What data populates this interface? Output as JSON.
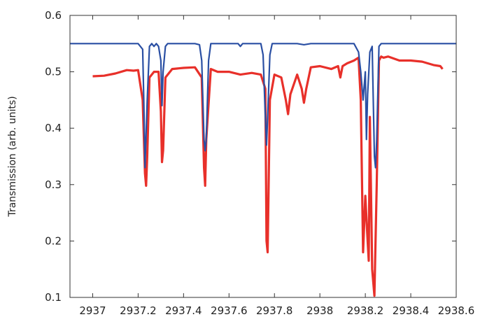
{
  "chart_data": {
    "type": "line",
    "title": "",
    "xlabel": "",
    "ylabel": "Transmission (arb. units)",
    "xlim": [
      2936.9,
      2938.6
    ],
    "ylim": [
      0.1,
      0.6
    ],
    "grid": false,
    "legend": "none",
    "xticks": [
      2937,
      2937.2,
      2937.4,
      2937.6,
      2937.8,
      2938,
      2938.2,
      2938.4,
      2938.6
    ],
    "xtick_labels": [
      "2937",
      "2937.2",
      "2937.4",
      "2937.6",
      "2937.8",
      "2938",
      "2938.2",
      "2938.4",
      "2938.6"
    ],
    "yticks": [
      0.1,
      0.2,
      0.3,
      0.4,
      0.5,
      0.6
    ],
    "ytick_labels": [
      "0.1",
      "0.2",
      "0.3",
      "0.4",
      "0.5",
      "0.6"
    ],
    "series": [
      {
        "color": "#e8302a",
        "x": [
          2937.0,
          2937.05,
          2937.1,
          2937.15,
          2937.18,
          2937.2,
          2937.22,
          2937.23,
          2937.235,
          2937.24,
          2937.25,
          2937.27,
          2937.29,
          2937.3,
          2937.305,
          2937.31,
          2937.32,
          2937.35,
          2937.4,
          2937.45,
          2937.48,
          2937.49,
          2937.495,
          2937.5,
          2937.52,
          2937.55,
          2937.6,
          2937.65,
          2937.7,
          2937.74,
          2937.76,
          2937.765,
          2937.77,
          2937.78,
          2937.8,
          2937.83,
          2937.85,
          2937.86,
          2937.87,
          2937.9,
          2937.92,
          2937.93,
          2937.94,
          2937.96,
          2938.0,
          2938.05,
          2938.08,
          2938.09,
          2938.1,
          2938.12,
          2938.15,
          2938.17,
          2938.18,
          2938.19,
          2938.2,
          2938.21,
          2938.215,
          2938.22,
          2938.23,
          2938.24,
          2938.25,
          2938.26,
          2938.27,
          2938.28,
          2938.3,
          2938.35,
          2938.4,
          2938.45,
          2938.5,
          2938.53,
          2938.54
        ],
        "y": [
          0.492,
          0.493,
          0.497,
          0.503,
          0.502,
          0.503,
          0.45,
          0.32,
          0.298,
          0.35,
          0.49,
          0.5,
          0.5,
          0.43,
          0.34,
          0.36,
          0.49,
          0.505,
          0.507,
          0.508,
          0.49,
          0.33,
          0.298,
          0.38,
          0.505,
          0.5,
          0.5,
          0.495,
          0.498,
          0.495,
          0.47,
          0.2,
          0.18,
          0.45,
          0.495,
          0.49,
          0.45,
          0.425,
          0.46,
          0.495,
          0.47,
          0.445,
          0.47,
          0.508,
          0.51,
          0.505,
          0.51,
          0.49,
          0.51,
          0.515,
          0.52,
          0.525,
          0.45,
          0.18,
          0.28,
          0.2,
          0.165,
          0.42,
          0.15,
          0.103,
          0.3,
          0.52,
          0.527,
          0.525,
          0.527,
          0.52,
          0.52,
          0.518,
          0.512,
          0.51,
          0.505
        ]
      },
      {
        "color": "#2a4fa3",
        "x": [
          2936.9,
          2937.1,
          2937.2,
          2937.22,
          2937.225,
          2937.23,
          2937.24,
          2937.25,
          2937.26,
          2937.27,
          2937.28,
          2937.29,
          2937.3,
          2937.305,
          2937.31,
          2937.32,
          2937.33,
          2937.45,
          2937.47,
          2937.48,
          2937.49,
          2937.495,
          2937.5,
          2937.51,
          2937.52,
          2937.64,
          2937.65,
          2937.66,
          2937.74,
          2937.75,
          2937.76,
          2937.765,
          2937.77,
          2937.78,
          2937.79,
          2937.9,
          2937.93,
          2937.96,
          2938.15,
          2938.17,
          2938.18,
          2938.19,
          2938.2,
          2938.205,
          2938.21,
          2938.22,
          2938.23,
          2938.24,
          2938.245,
          2938.25,
          2938.26,
          2938.27,
          2938.4,
          2938.6
        ],
        "y": [
          0.55,
          0.55,
          0.55,
          0.54,
          0.45,
          0.33,
          0.45,
          0.545,
          0.55,
          0.545,
          0.55,
          0.545,
          0.52,
          0.44,
          0.5,
          0.545,
          0.55,
          0.55,
          0.548,
          0.52,
          0.38,
          0.36,
          0.38,
          0.52,
          0.55,
          0.55,
          0.545,
          0.55,
          0.55,
          0.53,
          0.42,
          0.37,
          0.42,
          0.53,
          0.55,
          0.55,
          0.548,
          0.55,
          0.55,
          0.535,
          0.5,
          0.45,
          0.5,
          0.38,
          0.46,
          0.535,
          0.545,
          0.35,
          0.33,
          0.38,
          0.545,
          0.55,
          0.55,
          0.55
        ]
      }
    ]
  }
}
